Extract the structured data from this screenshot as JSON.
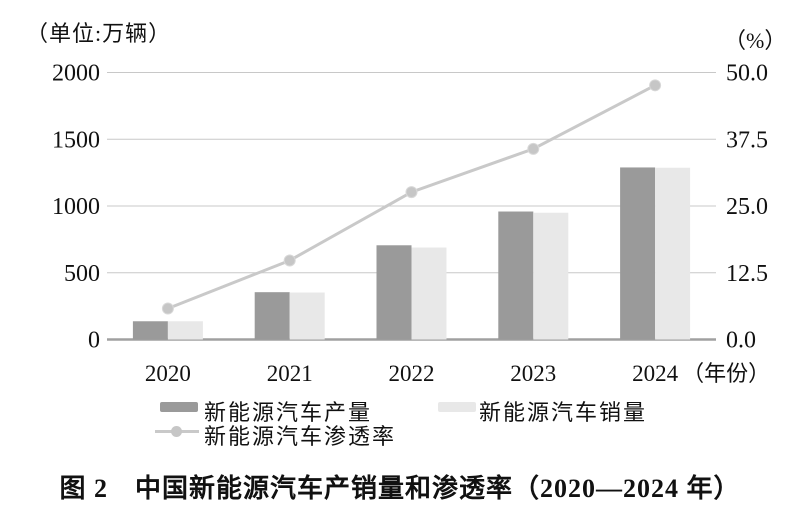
{
  "figure": {
    "unit_label": "（单位:万辆）",
    "percent_label": "（%）",
    "caption": "图 2　中国新能源汽车产销量和渗透率（2020—2024 年）"
  },
  "legend": {
    "production": "新能源汽车产量",
    "sales": "新能源汽车销量",
    "penetration": "新能源汽车渗透率"
  },
  "colors": {
    "production_bar": "#9a9a9a",
    "sales_bar": "#e8e8e8",
    "penetration_line": "#c9c9c9",
    "penetration_marker": "#c6c6c6",
    "gridline": "#c8c8c8",
    "baseline": "#a0a0a0",
    "text": "#111111"
  },
  "chart_data": {
    "type": "bar",
    "subtype": "grouped-bars-with-line",
    "title": "中国新能源汽车产销量和渗透率（2020—2024 年）",
    "categories": [
      "2020",
      "2021",
      "2022",
      "2023",
      "2024"
    ],
    "x_suffix": "（年份）",
    "series": [
      {
        "name": "新能源汽车产量",
        "type": "bar",
        "axis": "left",
        "color": "#9a9a9a",
        "values": [
          136.6,
          354.5,
          705.8,
          958.7,
          1288.8
        ]
      },
      {
        "name": "新能源汽车销量",
        "type": "bar",
        "axis": "left",
        "color": "#e8e8e8",
        "values": [
          136.7,
          352.1,
          688.7,
          949.5,
          1286.6
        ]
      },
      {
        "name": "新能源汽车渗透率",
        "type": "line",
        "axis": "right",
        "color": "#c9c9c9",
        "values": [
          5.8,
          14.8,
          27.6,
          35.7,
          47.6
        ]
      }
    ],
    "left_axis": {
      "title": "（单位:万辆）",
      "ticks": [
        "0",
        "500",
        "1000",
        "1500",
        "2000"
      ],
      "range": [
        0,
        2000
      ]
    },
    "right_axis": {
      "title": "（%）",
      "ticks": [
        "0.0",
        "12.5",
        "25.0",
        "37.5",
        "50.0"
      ],
      "range": [
        0,
        50
      ]
    },
    "grid": true,
    "legend_position": "bottom"
  }
}
